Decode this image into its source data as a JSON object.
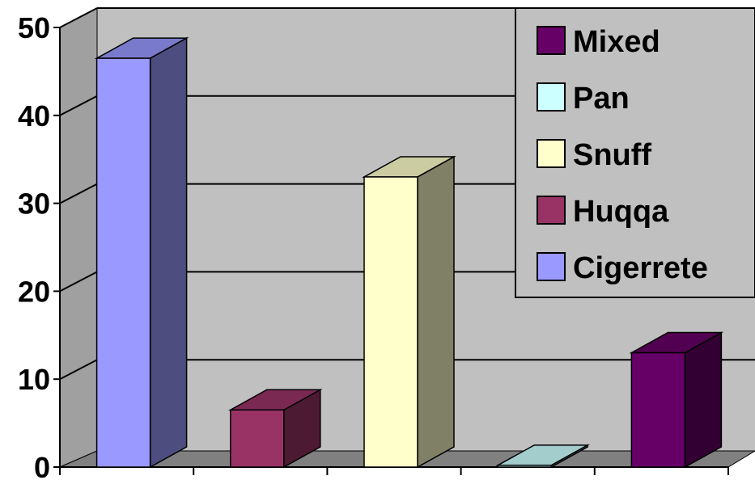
{
  "chart_data": {
    "type": "bar",
    "title": "",
    "xlabel": "",
    "ylabel": "",
    "ylim": [
      0,
      50
    ],
    "yticks": [
      "0",
      "10",
      "20",
      "30",
      "40",
      "50"
    ],
    "grid": true,
    "legend_position": "top-right",
    "categories": [
      "Cigerrete",
      "Huqqa",
      "Snuff",
      "Pan",
      "Mixed"
    ],
    "values": [
      46.5,
      6.5,
      33,
      0.2,
      13
    ],
    "colors": {
      "Cigerrete": "#9999ff",
      "Huqqa": "#993366",
      "Snuff": "#ffffcc",
      "Pan": "#ccffff",
      "Mixed": "#660066"
    },
    "legend": [
      "Mixed",
      "Pan",
      "Snuff",
      "Huqqa",
      "Cigerrete"
    ],
    "wall_color": "#c0c0c0",
    "floor_color": "#808080"
  }
}
